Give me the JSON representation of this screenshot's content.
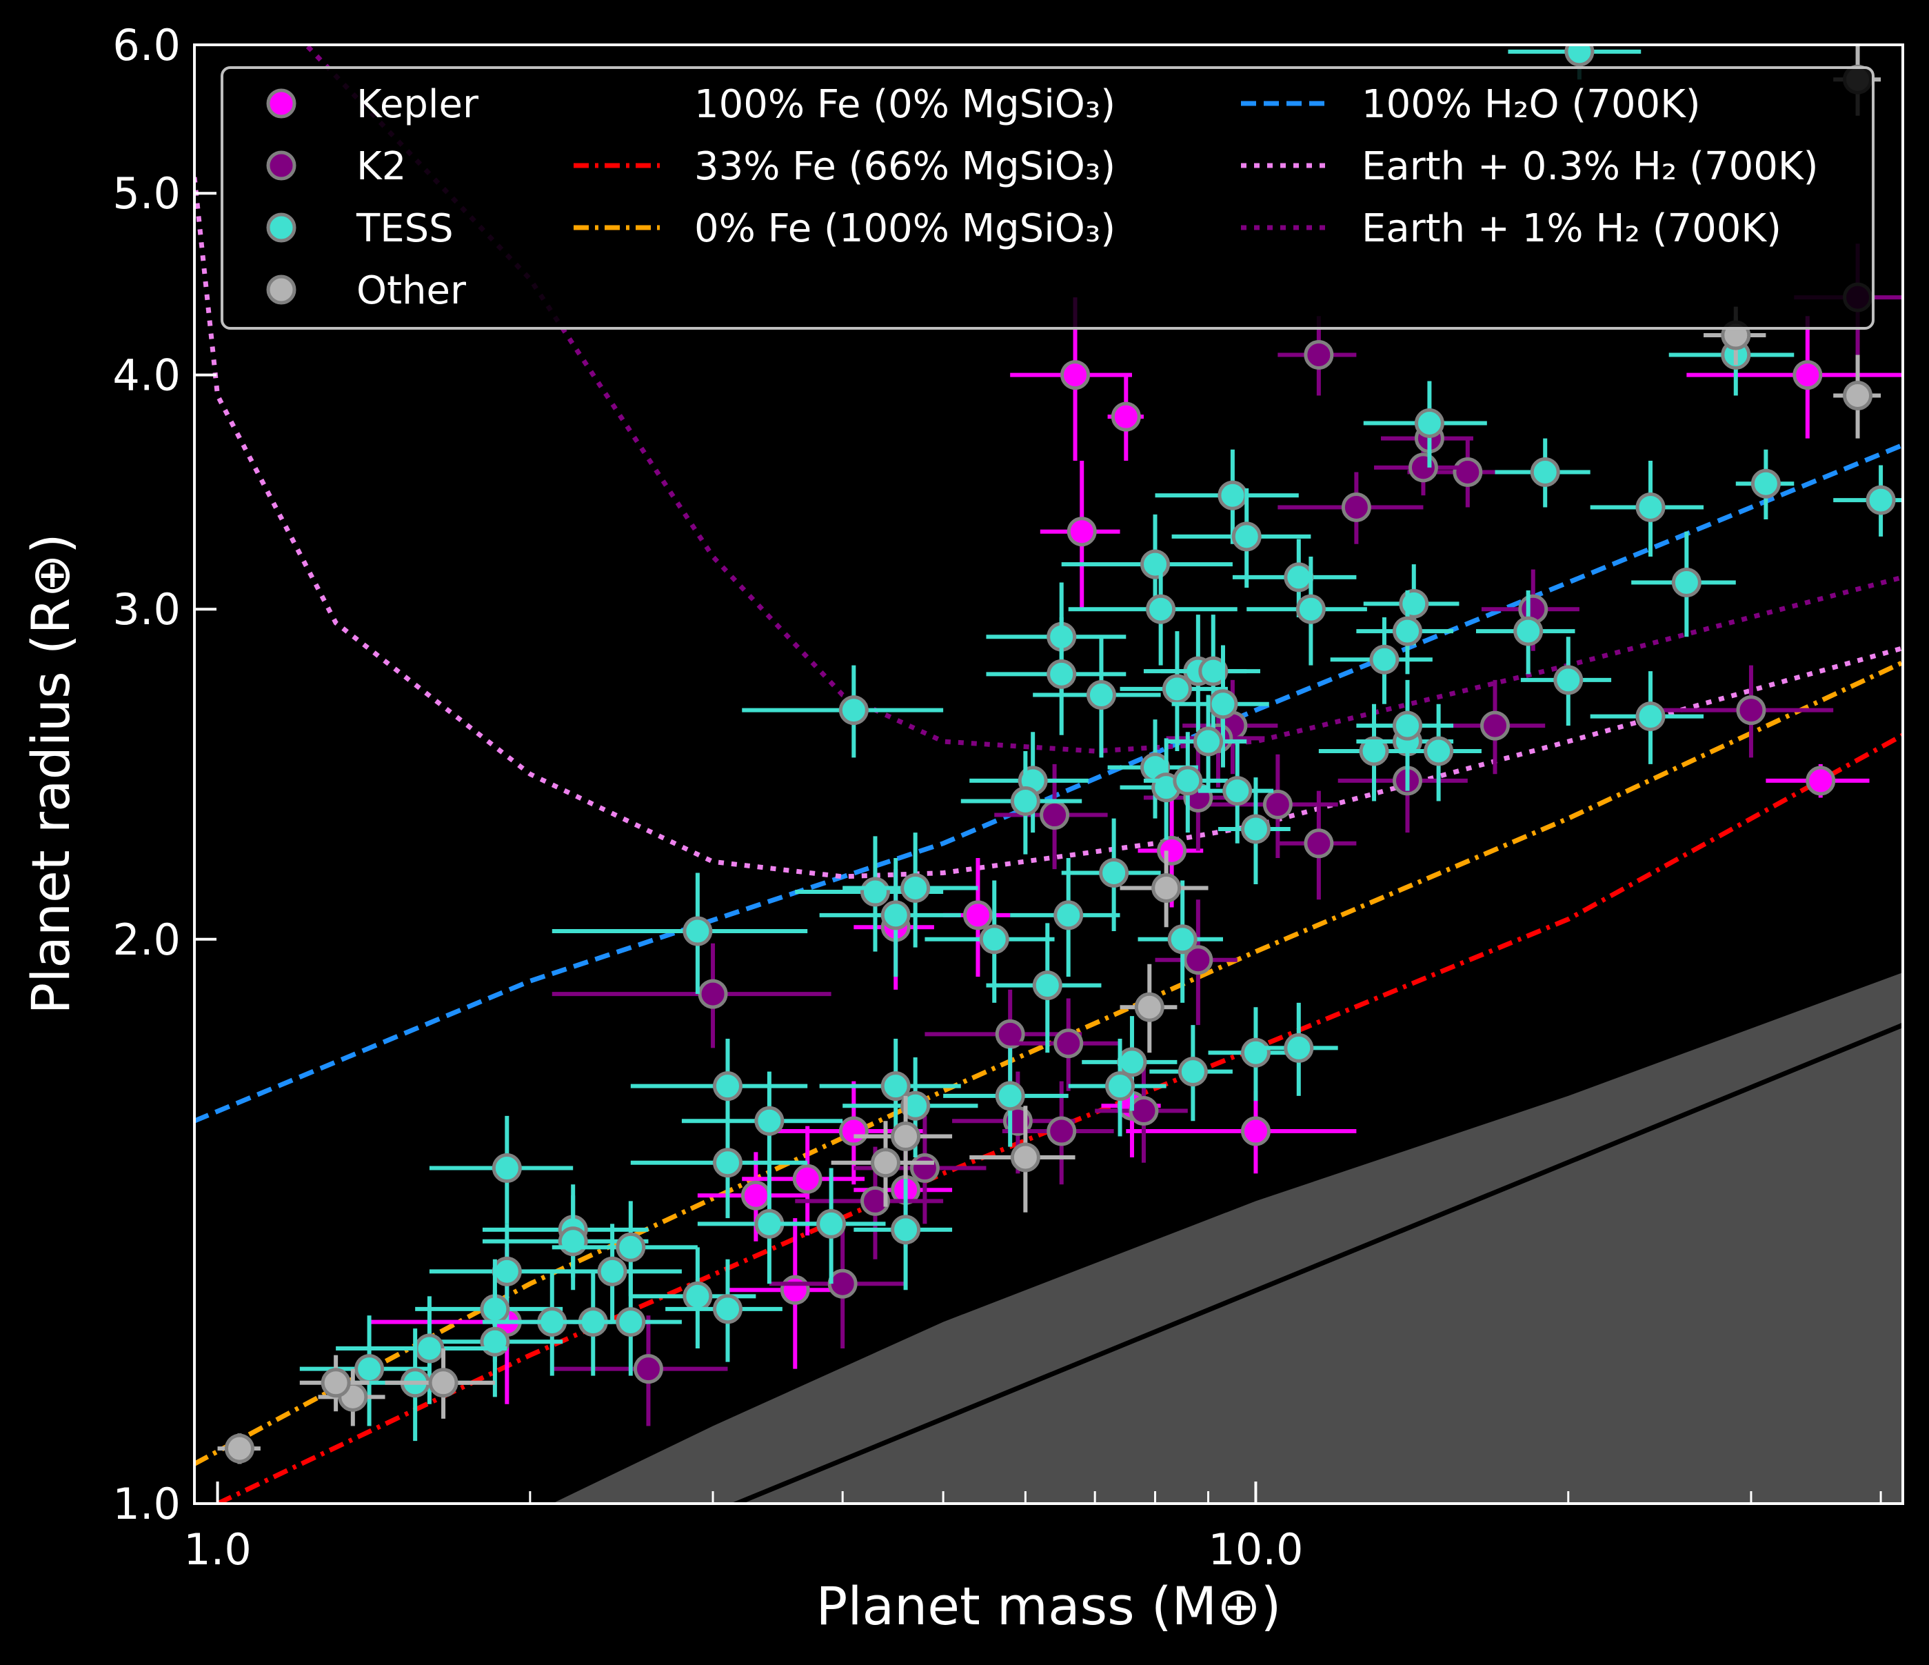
{
  "chart_data": {
    "type": "scatter",
    "xlabel": "Planet mass (M⊕)",
    "ylabel": "Planet radius (R⊕)",
    "x_scale": "log",
    "y_scale": "log",
    "xlim": [
      0.95,
      42
    ],
    "ylim": [
      1.0,
      6.0
    ],
    "x_ticks": [
      1.0,
      10.0
    ],
    "x_tick_labels": [
      "1.0",
      "10.0"
    ],
    "x_minor_ticks": [
      2,
      3,
      4,
      5,
      6,
      7,
      8,
      9,
      20,
      30,
      40
    ],
    "y_ticks": [
      1.0,
      2.0,
      3.0,
      4.0,
      5.0,
      6.0
    ],
    "y_tick_labels": [
      "1.0",
      "2.0",
      "3.0",
      "4.0",
      "5.0",
      "6.0"
    ],
    "legend_position": "top",
    "background": "#000000",
    "forbidden_region": {
      "color": "#4d4d4d",
      "boundary": [
        [
          2.1,
          1.0
        ],
        [
          3,
          1.1
        ],
        [
          5,
          1.25
        ],
        [
          10,
          1.45
        ],
        [
          20,
          1.65
        ],
        [
          42,
          1.92
        ]
      ]
    },
    "series": [
      {
        "name": "Kepler",
        "color": "#ff00ff",
        "edge": "#808080",
        "points": [
          [
            6.7,
            4.0,
            0.9,
            0.4
          ],
          [
            7.5,
            3.8,
            0.3,
            0.2
          ],
          [
            6.8,
            3.3,
            0.6,
            0.3
          ],
          [
            8.3,
            2.23,
            0.6,
            0.15
          ],
          [
            5.4,
            2.06,
            0.4,
            0.15
          ],
          [
            4.5,
            2.03,
            0.4,
            0.15
          ],
          [
            10.0,
            1.58,
            2.5,
            0.08
          ],
          [
            4.1,
            1.58,
            0.7,
            0.1
          ],
          [
            3.7,
            1.49,
            0.5,
            0.1
          ],
          [
            4.6,
            1.47,
            0.5,
            0.1
          ],
          [
            3.3,
            1.46,
            0.4,
            0.08
          ],
          [
            3.6,
            1.3,
            0.5,
            0.12
          ],
          [
            7.6,
            1.63,
            0.5,
            0.1
          ],
          [
            35.0,
            2.43,
            4,
            0.05
          ],
          [
            34.0,
            4.0,
            8,
            0.3
          ],
          [
            1.9,
            1.25,
            0.5,
            0.12
          ]
        ]
      },
      {
        "name": "K2",
        "color": "#800080",
        "edge": "#808080",
        "points": [
          [
            16.0,
            3.55,
            2,
            0.15
          ],
          [
            14.5,
            3.57,
            1.5,
            0.12
          ],
          [
            12.5,
            3.4,
            2,
            0.15
          ],
          [
            3.0,
            1.87,
            0.9,
            0.12
          ],
          [
            5.8,
            1.78,
            1,
            0.1
          ],
          [
            6.6,
            1.76,
            0.8,
            0.1
          ],
          [
            8.8,
            1.95,
            0.8,
            0.15
          ],
          [
            9.5,
            2.6,
            1,
            0.15
          ],
          [
            10.5,
            2.36,
            1.5,
            0.15
          ],
          [
            11.5,
            2.25,
            1,
            0.15
          ],
          [
            14.0,
            2.43,
            2,
            0.15
          ],
          [
            17.0,
            2.6,
            2,
            0.15
          ],
          [
            30.0,
            2.65,
            6,
            0.15
          ],
          [
            18.5,
            3.0,
            2,
            0.15
          ],
          [
            8.8,
            2.38,
            1,
            0.15
          ],
          [
            7.8,
            1.62,
            0.8,
            0.1
          ],
          [
            5.9,
            1.6,
            0.8,
            0.1
          ],
          [
            6.5,
            1.58,
            0.8,
            0.1
          ],
          [
            4.8,
            1.51,
            0.7,
            0.1
          ],
          [
            4.3,
            1.45,
            0.7,
            0.1
          ],
          [
            4.0,
            1.31,
            0.6,
            0.1
          ],
          [
            2.6,
            1.18,
            0.5,
            0.08
          ],
          [
            11.5,
            4.1,
            1,
            0.2
          ],
          [
            38.0,
            4.4,
            5,
            0.3
          ],
          [
            14.7,
            3.7,
            1.5,
            0.15
          ],
          [
            6.4,
            2.33,
            0.8,
            0.15
          ],
          [
            9.2,
            2.56,
            1,
            0.15
          ]
        ]
      },
      {
        "name": "TESS",
        "color": "#40e0d0",
        "edge": "#808080",
        "points": [
          [
            20.5,
            5.95,
            3,
            0.2
          ],
          [
            40.0,
            3.43,
            4,
            0.15
          ],
          [
            24.0,
            3.4,
            3,
            0.2
          ],
          [
            29.0,
            4.1,
            4,
            0.2
          ],
          [
            31.0,
            3.5,
            2,
            0.15
          ],
          [
            19.0,
            3.55,
            2,
            0.15
          ],
          [
            14.7,
            3.77,
            2,
            0.2
          ],
          [
            11.0,
            3.12,
            1.5,
            0.15
          ],
          [
            9.5,
            3.45,
            1.5,
            0.2
          ],
          [
            9.8,
            3.28,
            1.5,
            0.2
          ],
          [
            8.0,
            3.17,
            1.5,
            0.2
          ],
          [
            8.1,
            3.0,
            1.5,
            0.2
          ],
          [
            6.5,
            2.9,
            1,
            0.2
          ],
          [
            6.5,
            2.77,
            1,
            0.2
          ],
          [
            7.1,
            2.7,
            1,
            0.2
          ],
          [
            8.4,
            2.72,
            1,
            0.2
          ],
          [
            8.8,
            2.78,
            1,
            0.2
          ],
          [
            9.1,
            2.78,
            1,
            0.2
          ],
          [
            9.3,
            2.67,
            1,
            0.2
          ],
          [
            11.3,
            3.0,
            1.5,
            0.2
          ],
          [
            14.2,
            3.02,
            1.5,
            0.15
          ],
          [
            13.3,
            2.82,
            1.5,
            0.15
          ],
          [
            14.0,
            2.92,
            1.5,
            0.15
          ],
          [
            18.3,
            2.92,
            2,
            0.15
          ],
          [
            20.0,
            2.75,
            2,
            0.15
          ],
          [
            24.0,
            2.63,
            3,
            0.15
          ],
          [
            26.0,
            3.1,
            3,
            0.2
          ],
          [
            13.0,
            2.52,
            1.5,
            0.15
          ],
          [
            14.0,
            2.55,
            1.5,
            0.15
          ],
          [
            15.0,
            2.52,
            1.5,
            0.15
          ],
          [
            14.0,
            2.6,
            1.5,
            0.15
          ],
          [
            4.1,
            2.65,
            0.9,
            0.15
          ],
          [
            2.9,
            2.02,
            0.8,
            0.15
          ],
          [
            4.3,
            2.12,
            0.7,
            0.15
          ],
          [
            4.7,
            2.13,
            0.7,
            0.15
          ],
          [
            4.5,
            2.06,
            0.7,
            0.15
          ],
          [
            6.1,
            2.43,
            0.8,
            0.15
          ],
          [
            6.0,
            2.37,
            0.8,
            0.15
          ],
          [
            8.0,
            2.47,
            0.8,
            0.15
          ],
          [
            8.2,
            2.41,
            0.8,
            0.15
          ],
          [
            8.6,
            2.43,
            0.8,
            0.15
          ],
          [
            9.0,
            2.55,
            0.8,
            0.15
          ],
          [
            9.6,
            2.4,
            0.8,
            0.15
          ],
          [
            10.0,
            2.29,
            0.8,
            0.15
          ],
          [
            7.3,
            2.17,
            0.8,
            0.15
          ],
          [
            6.6,
            2.06,
            0.8,
            0.15
          ],
          [
            5.6,
            2.0,
            0.8,
            0.15
          ],
          [
            6.3,
            1.89,
            0.8,
            0.15
          ],
          [
            8.5,
            2.0,
            0.8,
            0.15
          ],
          [
            10.0,
            1.74,
            1,
            0.1
          ],
          [
            11.0,
            1.75,
            1,
            0.1
          ],
          [
            8.7,
            1.7,
            0.8,
            0.1
          ],
          [
            7.6,
            1.72,
            0.8,
            0.1
          ],
          [
            7.4,
            1.67,
            0.8,
            0.1
          ],
          [
            5.8,
            1.65,
            0.8,
            0.1
          ],
          [
            4.5,
            1.67,
            0.7,
            0.1
          ],
          [
            4.7,
            1.63,
            0.7,
            0.1
          ],
          [
            3.1,
            1.67,
            0.6,
            0.1
          ],
          [
            3.4,
            1.6,
            0.6,
            0.1
          ],
          [
            3.1,
            1.52,
            0.6,
            0.1
          ],
          [
            1.9,
            1.51,
            0.3,
            0.1
          ],
          [
            3.4,
            1.41,
            0.5,
            0.1
          ],
          [
            3.9,
            1.41,
            0.5,
            0.1
          ],
          [
            4.6,
            1.4,
            0.5,
            0.1
          ],
          [
            2.2,
            1.4,
            0.4,
            0.08
          ],
          [
            2.2,
            1.38,
            0.4,
            0.08
          ],
          [
            2.5,
            1.37,
            0.4,
            0.08
          ],
          [
            2.4,
            1.33,
            0.4,
            0.08
          ],
          [
            2.9,
            1.29,
            0.4,
            0.08
          ],
          [
            3.1,
            1.27,
            0.4,
            0.08
          ],
          [
            1.9,
            1.33,
            0.3,
            0.08
          ],
          [
            1.85,
            1.27,
            0.3,
            0.08
          ],
          [
            2.1,
            1.25,
            0.3,
            0.08
          ],
          [
            2.3,
            1.25,
            0.3,
            0.08
          ],
          [
            2.5,
            1.25,
            0.3,
            0.08
          ],
          [
            1.85,
            1.22,
            0.3,
            0.08
          ],
          [
            1.6,
            1.21,
            0.3,
            0.08
          ],
          [
            1.4,
            1.18,
            0.2,
            0.08
          ],
          [
            1.55,
            1.16,
            0.2,
            0.08
          ]
        ]
      },
      {
        "name": "Other",
        "color": "#b3b3b3",
        "edge": "#808080",
        "points": [
          [
            1.05,
            1.07,
            0.05,
            0.02
          ],
          [
            1.35,
            1.14,
            0.1,
            0.04
          ],
          [
            1.3,
            1.16,
            0.1,
            0.04
          ],
          [
            1.65,
            1.16,
            0.2,
            0.05
          ],
          [
            6.0,
            1.53,
            0.7,
            0.1
          ],
          [
            4.6,
            1.57,
            0.5,
            0.08
          ],
          [
            4.4,
            1.52,
            0.5,
            0.08
          ],
          [
            8.2,
            2.13,
            0.8,
            0.1
          ],
          [
            7.9,
            1.84,
            0.5,
            0.1
          ],
          [
            38.0,
            3.9,
            2,
            0.2
          ],
          [
            38.0,
            5.75,
            2,
            0.25
          ],
          [
            29.0,
            4.2,
            2,
            0.15
          ]
        ]
      }
    ],
    "models": [
      {
        "name": "100% Fe (0% MgSiO₃)",
        "color": "#000000",
        "style": "solid",
        "points": [
          [
            1,
            0.77
          ],
          [
            42,
            1.8
          ]
        ]
      },
      {
        "name": "33% Fe (66% MgSiO₃)",
        "color": "#ff0000",
        "style": "dashdot",
        "points": [
          [
            1,
            1.0
          ],
          [
            2,
            1.2
          ],
          [
            5,
            1.5
          ],
          [
            10,
            1.75
          ],
          [
            20,
            2.05
          ],
          [
            42,
            2.57
          ]
        ]
      },
      {
        "name": "0% Fe (100% MgSiO₃)",
        "color": "#ffa500",
        "style": "dashdot",
        "points": [
          [
            0.95,
            1.05
          ],
          [
            2,
            1.31
          ],
          [
            5,
            1.66
          ],
          [
            10,
            1.97
          ],
          [
            20,
            2.32
          ],
          [
            42,
            2.81
          ]
        ]
      },
      {
        "name": "100% H₂O (700K)",
        "color": "#1e90ff",
        "style": "dashed",
        "points": [
          [
            0.95,
            1.6
          ],
          [
            2,
            1.9
          ],
          [
            5,
            2.25
          ],
          [
            10,
            2.65
          ],
          [
            20,
            3.1
          ],
          [
            42,
            3.67
          ]
        ]
      },
      {
        "name": "Earth + 0.3% H₂ (700K)",
        "color": "#ee82ee",
        "style": "dotted",
        "points": [
          [
            0.95,
            5.1
          ],
          [
            1.0,
            3.9
          ],
          [
            1.3,
            2.95
          ],
          [
            2,
            2.45
          ],
          [
            3,
            2.2
          ],
          [
            4,
            2.16
          ],
          [
            5,
            2.17
          ],
          [
            8,
            2.25
          ],
          [
            10,
            2.3
          ],
          [
            20,
            2.55
          ],
          [
            42,
            2.86
          ]
        ]
      },
      {
        "name": "Earth + 1% H₂ (700K)",
        "color": "#800080",
        "style": "dotted",
        "points": [
          [
            1.15,
            6.2
          ],
          [
            2,
            4.5
          ],
          [
            3,
            3.2
          ],
          [
            4,
            2.7
          ],
          [
            5,
            2.55
          ],
          [
            7,
            2.52
          ],
          [
            10,
            2.55
          ],
          [
            20,
            2.8
          ],
          [
            42,
            3.12
          ]
        ]
      }
    ],
    "legend": {
      "scatter": [
        "Kepler",
        "K2",
        "TESS",
        "Other"
      ],
      "lines": [
        "100% Fe (0% MgSiO₃)",
        "33% Fe (66% MgSiO₃)",
        "0% Fe (100% MgSiO₃)",
        "100% H₂O (700K)",
        "Earth + 0.3% H₂ (700K)",
        "Earth + 1% H₂ (700K)"
      ]
    }
  }
}
